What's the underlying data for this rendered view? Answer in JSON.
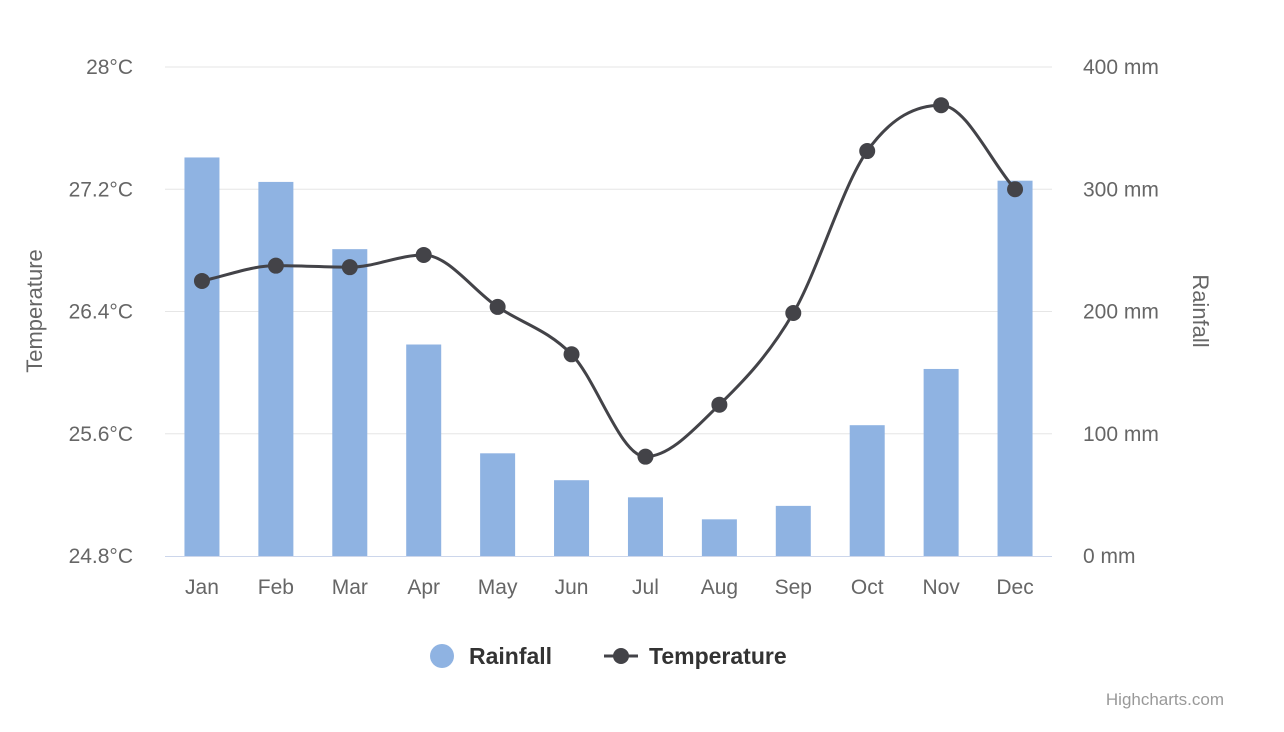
{
  "chart_data": {
    "type": "bar",
    "categories": [
      "Jan",
      "Feb",
      "Mar",
      "Apr",
      "May",
      "Jun",
      "Jul",
      "Aug",
      "Sep",
      "Oct",
      "Nov",
      "Dec"
    ],
    "series": [
      {
        "name": "Rainfall",
        "type": "bar",
        "axis": "right",
        "unit": "mm",
        "color": "#8fb3e2",
        "values": [
          326,
          306,
          251,
          173,
          84,
          62,
          48,
          30,
          41,
          107,
          153,
          307
        ]
      },
      {
        "name": "Temperature",
        "type": "line",
        "axis": "left",
        "unit": "°C",
        "color": "#434348",
        "values": [
          26.6,
          26.7,
          26.69,
          26.77,
          26.43,
          26.12,
          25.45,
          25.79,
          26.39,
          27.45,
          27.75,
          27.2
        ]
      }
    ],
    "y_left": {
      "title": "Temperature",
      "range": [
        24.8,
        28
      ],
      "ticks": [
        24.8,
        25.6,
        26.4,
        27.2,
        28
      ],
      "tick_labels": [
        "24.8°C",
        "25.6°C",
        "26.4°C",
        "27.2°C",
        "28°C"
      ]
    },
    "y_right": {
      "title": "Rainfall",
      "range": [
        0,
        400
      ],
      "ticks": [
        0,
        100,
        200,
        300,
        400
      ],
      "tick_labels": [
        "0 mm",
        "100 mm",
        "200 mm",
        "300 mm",
        "400 mm"
      ]
    },
    "grid": true,
    "legend": {
      "position": "bottom-center",
      "items": [
        "Rainfall",
        "Temperature"
      ]
    },
    "credits": "Highcharts.com"
  }
}
